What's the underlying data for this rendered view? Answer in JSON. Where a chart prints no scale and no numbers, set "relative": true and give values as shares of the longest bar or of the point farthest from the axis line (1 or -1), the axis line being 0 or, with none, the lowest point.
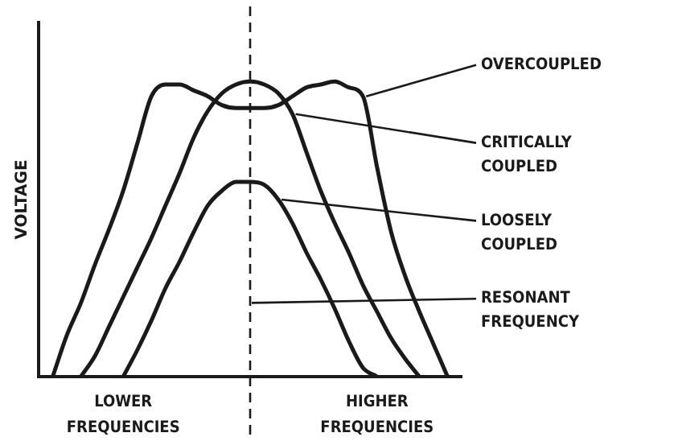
{
  "chart_data": {
    "type": "line",
    "relative": true,
    "ylabel": "VOLTAGE",
    "categories": [
      null,
      null,
      null,
      null,
      null,
      null,
      null,
      null,
      null,
      null,
      null,
      null,
      null,
      null,
      null,
      null,
      null,
      null,
      null,
      null,
      null,
      null,
      null,
      null,
      null,
      null,
      null,
      null,
      null,
      null,
      null
    ],
    "series": [
      {
        "name": "OVERCOUPLED",
        "color": "#1a1a1a",
        "values": [
          null,
          0,
          0.14,
          0.25,
          0.38,
          0.5,
          0.63,
          0.79,
          0.95,
          0.99,
          0.99,
          0.97,
          0.95,
          0.92,
          0.91,
          0.91,
          0.91,
          0.92,
          0.95,
          0.98,
          0.99,
          1,
          0.98,
          0.95,
          0.71,
          0.49,
          0.34,
          0.22,
          0.11,
          0,
          null
        ]
      },
      {
        "name": "CRITICALLY COUPLED",
        "color": "#1a1a1a",
        "values": [
          null,
          null,
          null,
          0,
          0.07,
          0.17,
          0.27,
          0.37,
          0.47,
          0.58,
          0.69,
          0.81,
          0.9,
          0.96,
          0.99,
          1,
          0.99,
          0.96,
          0.89,
          0.76,
          0.63,
          0.52,
          0.42,
          0.31,
          0.22,
          0.13,
          0.06,
          0,
          null,
          null,
          null
        ]
      },
      {
        "name": "LOOSELY COUPLED",
        "color": "#1a1a1a",
        "values": [
          null,
          null,
          null,
          null,
          null,
          null,
          0,
          0.09,
          0.19,
          0.3,
          0.39,
          0.49,
          0.58,
          0.63,
          0.66,
          0.66,
          0.65,
          0.6,
          0.52,
          0.42,
          0.33,
          0.23,
          0.12,
          0.03,
          0,
          null,
          null,
          null,
          null,
          null,
          null
        ]
      }
    ],
    "annotations": [
      "LOWER FREQUENCIES",
      "HIGHER FREQUENCIES",
      "RESONANT FREQUENCY"
    ],
    "marker": "none",
    "line_style": "solid",
    "grid": false,
    "legend": false
  }
}
